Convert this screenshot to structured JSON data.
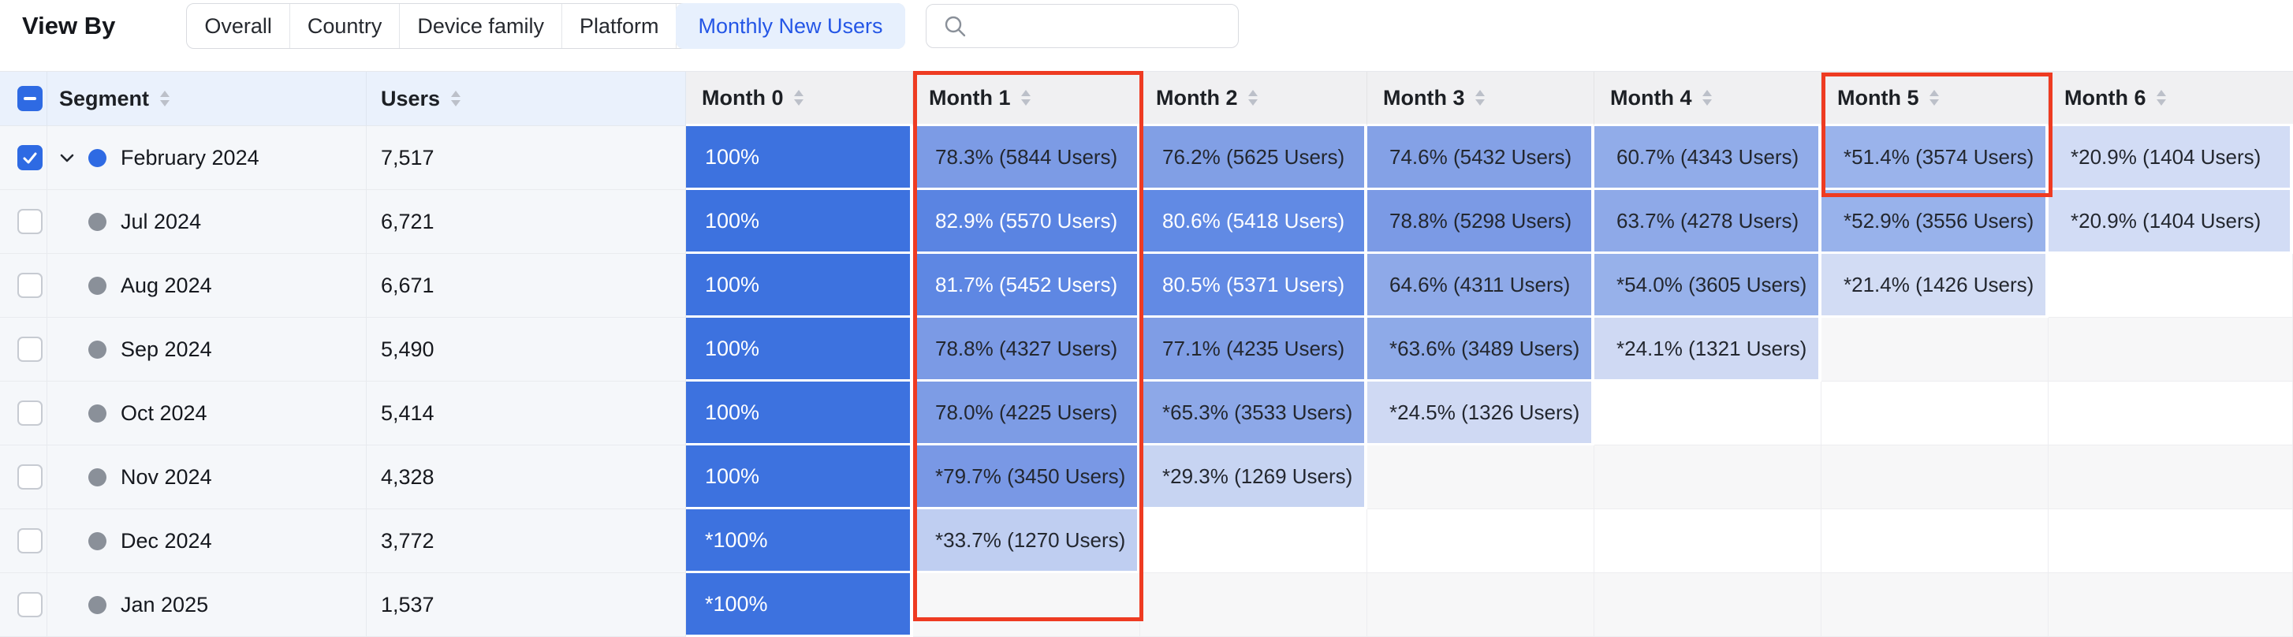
{
  "toolbar": {
    "view_by_label": "View By",
    "tabs": [
      {
        "label": "Overall",
        "selected": false
      },
      {
        "label": "Country",
        "selected": false
      },
      {
        "label": "Device family",
        "selected": false
      },
      {
        "label": "Platform",
        "selected": false
      },
      {
        "label": "Monthly New Users",
        "selected": true
      }
    ],
    "search": {
      "value": "",
      "placeholder": ""
    }
  },
  "table": {
    "segment_header": "Segment",
    "users_header": "Users",
    "month_headers": [
      "Month 0",
      "Month 1",
      "Month 2",
      "Month 3",
      "Month 4",
      "Month 5",
      "Month 6"
    ],
    "header_checkbox_state": "indeterminate",
    "rows": [
      {
        "segment": "February 2024",
        "users": "7,517",
        "checked": true,
        "expandable": true,
        "dot": "blue",
        "cells": [
          {
            "text": "100%",
            "pct": 100
          },
          {
            "text": "78.3% (5844 Users)",
            "pct": 78.3
          },
          {
            "text": "76.2% (5625 Users)",
            "pct": 76.2
          },
          {
            "text": "74.6% (5432 Users)",
            "pct": 74.6
          },
          {
            "text": "60.7% (4343 Users)",
            "pct": 60.7
          },
          {
            "text": "*51.4% (3574 Users)",
            "pct": 51.4
          },
          {
            "text": "*20.9% (1404 Users)",
            "pct": 20.9
          }
        ]
      },
      {
        "segment": "Jul 2024",
        "users": "6,721",
        "checked": false,
        "expandable": false,
        "dot": "gray",
        "cells": [
          {
            "text": "100%",
            "pct": 100
          },
          {
            "text": "82.9% (5570 Users)",
            "pct": 82.9
          },
          {
            "text": "80.6% (5418 Users)",
            "pct": 80.6
          },
          {
            "text": "78.8% (5298 Users)",
            "pct": 78.8
          },
          {
            "text": "63.7% (4278 Users)",
            "pct": 63.7
          },
          {
            "text": "*52.9% (3556 Users)",
            "pct": 52.9
          },
          {
            "text": "*20.9% (1404 Users)",
            "pct": 20.9
          }
        ]
      },
      {
        "segment": "Aug 2024",
        "users": "6,671",
        "checked": false,
        "expandable": false,
        "dot": "gray",
        "cells": [
          {
            "text": "100%",
            "pct": 100
          },
          {
            "text": "81.7% (5452 Users)",
            "pct": 81.7
          },
          {
            "text": "80.5% (5371 Users)",
            "pct": 80.5
          },
          {
            "text": "64.6% (4311 Users)",
            "pct": 64.6
          },
          {
            "text": "*54.0% (3605 Users)",
            "pct": 54.0
          },
          {
            "text": "*21.4% (1426 Users)",
            "pct": 21.4
          },
          null
        ]
      },
      {
        "segment": "Sep 2024",
        "users": "5,490",
        "checked": false,
        "expandable": false,
        "dot": "gray",
        "cells": [
          {
            "text": "100%",
            "pct": 100
          },
          {
            "text": "78.8% (4327 Users)",
            "pct": 78.8
          },
          {
            "text": "77.1% (4235 Users)",
            "pct": 77.1
          },
          {
            "text": "*63.6% (3489 Users)",
            "pct": 63.6
          },
          {
            "text": "*24.1% (1321 Users)",
            "pct": 24.1
          },
          null,
          null
        ]
      },
      {
        "segment": "Oct 2024",
        "users": "5,414",
        "checked": false,
        "expandable": false,
        "dot": "gray",
        "cells": [
          {
            "text": "100%",
            "pct": 100
          },
          {
            "text": "78.0% (4225 Users)",
            "pct": 78.0
          },
          {
            "text": "*65.3% (3533 Users)",
            "pct": 65.3
          },
          {
            "text": "*24.5% (1326 Users)",
            "pct": 24.5
          },
          null,
          null,
          null
        ]
      },
      {
        "segment": "Nov 2024",
        "users": "4,328",
        "checked": false,
        "expandable": false,
        "dot": "gray",
        "cells": [
          {
            "text": "100%",
            "pct": 100
          },
          {
            "text": "*79.7% (3450 Users)",
            "pct": 79.7
          },
          {
            "text": "*29.3% (1269 Users)",
            "pct": 29.3
          },
          null,
          null,
          null,
          null
        ]
      },
      {
        "segment": "Dec 2024",
        "users": "3,772",
        "checked": false,
        "expandable": false,
        "dot": "gray",
        "cells": [
          {
            "text": "*100%",
            "pct": 100
          },
          {
            "text": "*33.7% (1270 Users)",
            "pct": 33.7
          },
          null,
          null,
          null,
          null,
          null
        ]
      },
      {
        "segment": "Jan 2025",
        "users": "1,537",
        "checked": false,
        "expandable": false,
        "dot": "gray",
        "cells": [
          {
            "text": "*100%",
            "pct": 100
          },
          null,
          null,
          null,
          null,
          null,
          null
        ]
      }
    ]
  },
  "highlights": [
    {
      "column": "Month 1",
      "scope": "full-column"
    },
    {
      "column": "Month 5",
      "scope": "header-and-first-row"
    }
  ],
  "colors": {
    "accent_blue": "#2e6ae3",
    "heat_100": "#3d72df",
    "heat_low": "#d3dcf4",
    "highlight_red": "#ee3b22",
    "selected_tab_text": "#2456e6",
    "selected_tab_bg": "#e7f0fd",
    "header_left_bg": "#eaf1fc",
    "header_month_bg": "#f0f0f2"
  }
}
